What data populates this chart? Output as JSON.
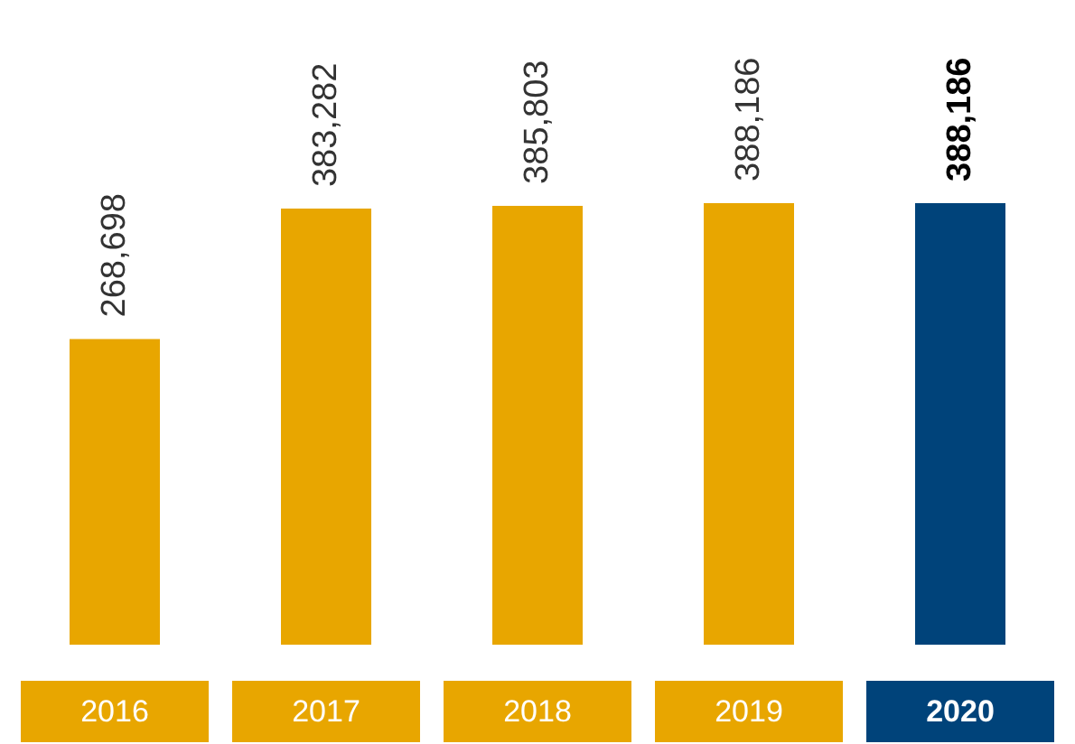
{
  "chart_data": {
    "type": "bar",
    "categories": [
      "2016",
      "2017",
      "2018",
      "2019",
      "2020"
    ],
    "values": [
      268698,
      383282,
      385803,
      388186,
      388186
    ],
    "value_labels": [
      "268,698",
      "383,282",
      "385,803",
      "388,186",
      "388,186"
    ],
    "colors": [
      "#e8a600",
      "#e8a600",
      "#e8a600",
      "#e8a600",
      "#00437a"
    ]
  }
}
